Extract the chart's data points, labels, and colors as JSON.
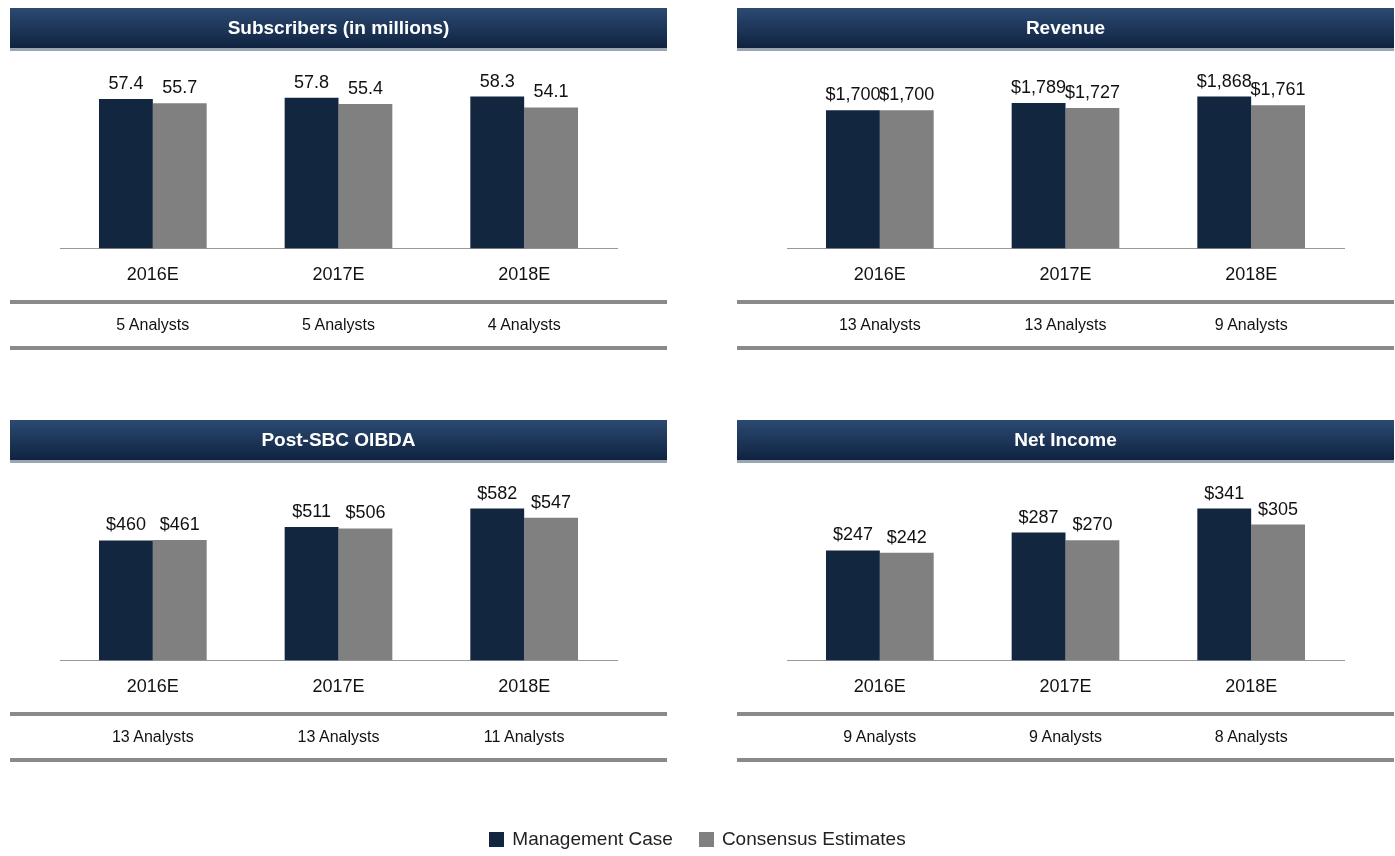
{
  "chart_data": [
    {
      "type": "bar",
      "title": "Subscribers (in millions)",
      "categories": [
        "2016E",
        "2017E",
        "2018E"
      ],
      "legend": "bottom",
      "series": [
        {
          "name": "Management Case",
          "color": "#13263f",
          "values": [
            57.4,
            57.8,
            58.3
          ],
          "value_labels": [
            "57.4",
            "57.8",
            "58.3"
          ]
        },
        {
          "name": "Consensus Estimates",
          "color": "#808080",
          "values": [
            55.7,
            55.4,
            54.1
          ],
          "value_labels": [
            "55.7",
            "55.4",
            "54.1"
          ]
        }
      ],
      "annotations": [
        "5 Analysts",
        "5 Analysts",
        "4 Analysts"
      ]
    },
    {
      "type": "bar",
      "title": "Revenue",
      "categories": [
        "2016E",
        "2017E",
        "2018E"
      ],
      "series": [
        {
          "color": "#13263f",
          "values": [
            1700,
            1789,
            1868
          ],
          "value_labels": [
            "$1,700",
            "$1,789",
            "$1,868"
          ]
        },
        {
          "color": "#808080",
          "values": [
            1700,
            1727,
            1761
          ],
          "value_labels": [
            "$1,700",
            "$1,727",
            "$1,761"
          ]
        }
      ],
      "annotations": [
        "13 Analysts",
        "13 Analysts",
        "9 Analysts"
      ]
    },
    {
      "type": "bar",
      "title": "Post-SBC OIBDA",
      "categories": [
        "2016E",
        "2017E",
        "2018E"
      ],
      "series": [
        {
          "color": "#13263f",
          "values": [
            460,
            511,
            582
          ],
          "value_labels": [
            "$460",
            "$511",
            "$582"
          ]
        },
        {
          "color": "#808080",
          "values": [
            461,
            506,
            547
          ],
          "value_labels": [
            "$461",
            "$506",
            "$547"
          ]
        }
      ],
      "annotations": [
        "13 Analysts",
        "13 Analysts",
        "11 Analysts"
      ]
    },
    {
      "type": "bar",
      "title": "Net Income",
      "categories": [
        "2016E",
        "2017E",
        "2018E"
      ],
      "series": [
        {
          "color": "#13263f",
          "values": [
            247,
            287,
            341
          ],
          "value_labels": [
            "$247",
            "$287",
            "$341"
          ]
        },
        {
          "color": "#808080",
          "values": [
            242,
            270,
            305
          ],
          "value_labels": [
            "$242",
            "$270",
            "$305"
          ]
        }
      ],
      "annotations": [
        "9 Analysts",
        "9 Analysts",
        "8 Analysts"
      ]
    }
  ]
}
